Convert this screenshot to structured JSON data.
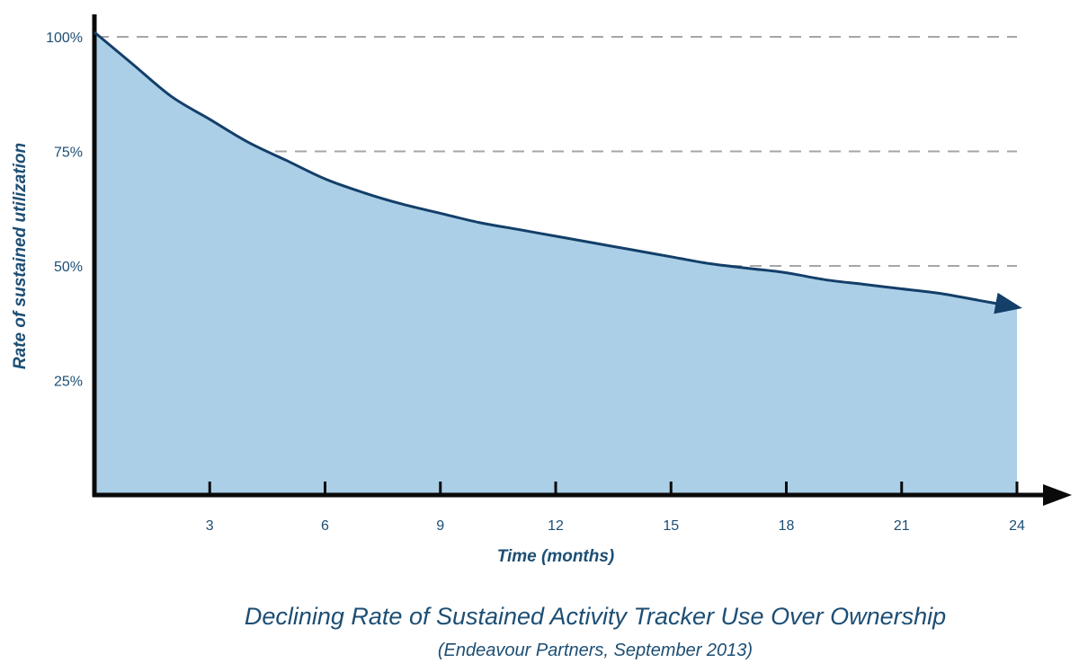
{
  "chart_data": {
    "type": "area",
    "title": "Declining Rate of Sustained Activity Tracker Use Over Ownership",
    "subtitle": "(Endeavour Partners, September 2013)",
    "xlabel": "Time (months)",
    "ylabel": "Rate of sustained utilization",
    "x_ticks": [
      3,
      6,
      9,
      12,
      15,
      18,
      21,
      24
    ],
    "y_ticks": [
      "25%",
      "50%",
      "75%",
      "100%"
    ],
    "y_tick_values": [
      25,
      50,
      75,
      100
    ],
    "xlim": [
      0,
      24
    ],
    "ylim": [
      0,
      100
    ],
    "grid": "horizontal dashed",
    "series": [
      {
        "x": [
          0,
          1,
          2,
          3,
          4,
          5,
          6,
          7,
          8,
          9,
          10,
          11,
          12,
          13,
          14,
          15,
          16,
          17,
          18,
          19,
          20,
          21,
          22,
          23,
          24
        ],
        "values": [
          101,
          94,
          87,
          82,
          77,
          73,
          69,
          66,
          63.5,
          61.5,
          59.5,
          58,
          56.5,
          55,
          53.5,
          52,
          50.5,
          49.5,
          48.5,
          47,
          46,
          45,
          44,
          42.5,
          41
        ]
      }
    ],
    "colors": {
      "fill": "#abcfe7",
      "line": "#133f69",
      "axis": "#0a0a0a",
      "grid": "#a6a6a6",
      "text": "#1d4e74"
    }
  }
}
